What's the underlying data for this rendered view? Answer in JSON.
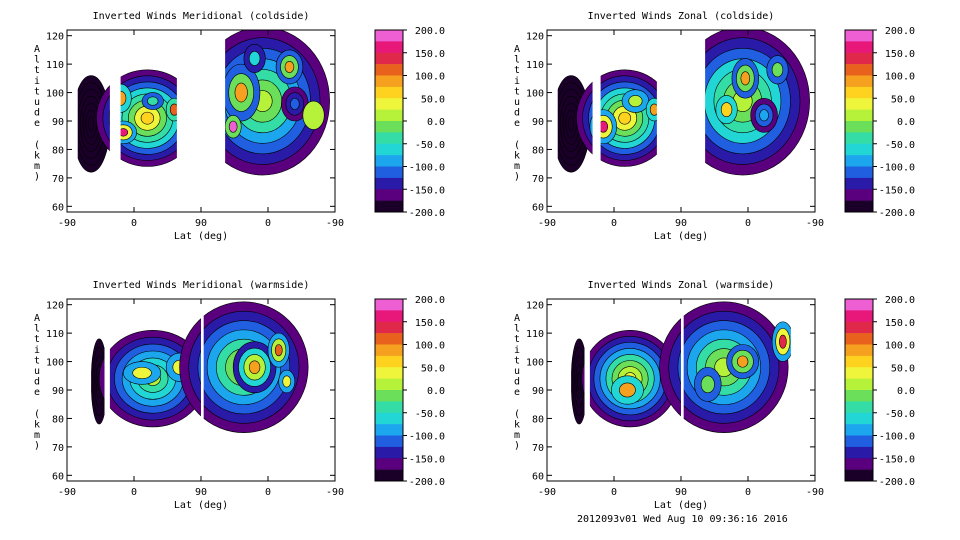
{
  "chart_data": [
    {
      "type": "heatmap",
      "title": "Inverted Winds Meridional (coldside)",
      "xlabel": "Lat (deg)",
      "ylabel": "Altitude (km)",
      "x_ticks": [
        "-90",
        "0",
        "90",
        "0",
        "-90"
      ],
      "y_ticks": [
        "60",
        "70",
        "80",
        "90",
        "100",
        "110",
        "120"
      ],
      "ylim": [
        58,
        122
      ],
      "colorbar_labels": [
        "200.0",
        "150.0",
        "100.0",
        "50.0",
        "0.0",
        "-50.0",
        "-100.0",
        "-150.0",
        "-200.0"
      ],
      "colorbar_range": [
        -200,
        200
      ],
      "blobs": [
        {
          "x": 0.09,
          "y": 89,
          "w": 0.07,
          "h": 17,
          "v": -185,
          "layers": 7
        },
        {
          "x": 0.3,
          "y": 91,
          "w": 0.19,
          "h": 17,
          "v": 60,
          "layers": 8
        },
        {
          "x": 0.21,
          "y": 86,
          "w": 0.05,
          "h": 4,
          "v": 165,
          "layers": 3
        },
        {
          "x": 0.2,
          "y": 98,
          "w": 0.04,
          "h": 5,
          "v": 80,
          "layers": 2
        },
        {
          "x": 0.4,
          "y": 94,
          "w": 0.03,
          "h": 4,
          "v": 120,
          "layers": 2
        },
        {
          "x": 0.32,
          "y": 97,
          "w": 0.04,
          "h": 3,
          "v": -40,
          "layers": 2
        },
        {
          "x": 0.73,
          "y": 97,
          "w": 0.25,
          "h": 26,
          "v": 10,
          "layers": 7
        },
        {
          "x": 0.65,
          "y": 100,
          "w": 0.07,
          "h": 10,
          "v": 80,
          "layers": 3
        },
        {
          "x": 0.7,
          "y": 112,
          "w": 0.04,
          "h": 5,
          "v": -70,
          "layers": 2
        },
        {
          "x": 0.83,
          "y": 109,
          "w": 0.05,
          "h": 6,
          "v": 85,
          "layers": 3
        },
        {
          "x": 0.85,
          "y": 96,
          "w": 0.05,
          "h": 6,
          "v": -120,
          "layers": 3
        },
        {
          "x": 0.62,
          "y": 88,
          "w": 0.03,
          "h": 4,
          "v": 175,
          "layers": 2
        },
        {
          "x": 0.92,
          "y": 92,
          "w": 0.04,
          "h": 5,
          "v": 15,
          "layers": 1
        }
      ]
    },
    {
      "type": "heatmap",
      "title": "Inverted Winds Zonal (coldside)",
      "xlabel": "Lat (deg)",
      "ylabel": "Altitude (km)",
      "x_ticks": [
        "-90",
        "0",
        "90",
        "0",
        "-90"
      ],
      "y_ticks": [
        "60",
        "70",
        "80",
        "90",
        "100",
        "110",
        "120"
      ],
      "ylim": [
        58,
        122
      ],
      "colorbar_labels": [
        "200.0",
        "150.0",
        "100.0",
        "50.0",
        "0.0",
        "-50.0",
        "-100.0",
        "-150.0",
        "-200.0"
      ],
      "colorbar_range": [
        -200,
        200
      ],
      "blobs": [
        {
          "x": 0.09,
          "y": 89,
          "w": 0.07,
          "h": 17,
          "v": -185,
          "layers": 7
        },
        {
          "x": 0.29,
          "y": 91,
          "w": 0.18,
          "h": 17,
          "v": 60,
          "layers": 8
        },
        {
          "x": 0.21,
          "y": 88,
          "w": 0.05,
          "h": 6,
          "v": 165,
          "layers": 3
        },
        {
          "x": 0.33,
          "y": 97,
          "w": 0.05,
          "h": 4,
          "v": 5,
          "layers": 2
        },
        {
          "x": 0.4,
          "y": 94,
          "w": 0.03,
          "h": 4,
          "v": 90,
          "layers": 2
        },
        {
          "x": 0.73,
          "y": 97,
          "w": 0.25,
          "h": 26,
          "v": 20,
          "layers": 7
        },
        {
          "x": 0.74,
          "y": 105,
          "w": 0.05,
          "h": 7,
          "v": 80,
          "layers": 3
        },
        {
          "x": 0.81,
          "y": 92,
          "w": 0.05,
          "h": 6,
          "v": -80,
          "layers": 3
        },
        {
          "x": 0.67,
          "y": 94,
          "w": 0.04,
          "h": 5,
          "v": 60,
          "layers": 2
        },
        {
          "x": 0.86,
          "y": 108,
          "w": 0.04,
          "h": 5,
          "v": -20,
          "layers": 2
        }
      ]
    },
    {
      "type": "heatmap",
      "title": "Inverted Winds Meridional (warmside)",
      "xlabel": "Lat (deg)",
      "ylabel": "Altitude (km)",
      "x_ticks": [
        "-90",
        "0",
        "90",
        "0",
        "-90"
      ],
      "y_ticks": [
        "60",
        "70",
        "80",
        "90",
        "100",
        "110",
        "120"
      ],
      "ylim": [
        58,
        122
      ],
      "colorbar_labels": [
        "200.0",
        "150.0",
        "100.0",
        "50.0",
        "0.0",
        "-50.0",
        "-100.0",
        "-150.0",
        "-200.0"
      ],
      "colorbar_range": [
        -200,
        200
      ],
      "blobs": [
        {
          "x": 0.12,
          "y": 93,
          "w": 0.03,
          "h": 15,
          "v": -195,
          "layers": 5
        },
        {
          "x": 0.32,
          "y": 94,
          "w": 0.2,
          "h": 17,
          "v": 0,
          "layers": 7
        },
        {
          "x": 0.28,
          "y": 96,
          "w": 0.07,
          "h": 4,
          "v": 30,
          "layers": 2
        },
        {
          "x": 0.42,
          "y": 98,
          "w": 0.05,
          "h": 5,
          "v": 25,
          "layers": 2
        },
        {
          "x": 0.66,
          "y": 98,
          "w": 0.24,
          "h": 23,
          "v": 15,
          "layers": 7
        },
        {
          "x": 0.7,
          "y": 98,
          "w": 0.08,
          "h": 9,
          "v": 80,
          "layers": 4
        },
        {
          "x": 0.79,
          "y": 104,
          "w": 0.04,
          "h": 6,
          "v": 110,
          "layers": 3
        },
        {
          "x": 0.82,
          "y": 93,
          "w": 0.03,
          "h": 4,
          "v": 30,
          "layers": 2
        }
      ]
    },
    {
      "type": "heatmap",
      "title": "Inverted Winds Zonal (warmside)",
      "xlabel": "Lat (deg)",
      "ylabel": "Altitude (km)",
      "x_ticks": [
        "-90",
        "0",
        "90",
        "0",
        "-90"
      ],
      "y_ticks": [
        "60",
        "70",
        "80",
        "90",
        "100",
        "110",
        "120"
      ],
      "ylim": [
        58,
        122
      ],
      "colorbar_labels": [
        "200.0",
        "150.0",
        "100.0",
        "50.0",
        "0.0",
        "-50.0",
        "-100.0",
        "-150.0",
        "-200.0"
      ],
      "colorbar_range": [
        -200,
        200
      ],
      "blobs": [
        {
          "x": 0.12,
          "y": 93,
          "w": 0.03,
          "h": 15,
          "v": -195,
          "layers": 5
        },
        {
          "x": 0.31,
          "y": 94,
          "w": 0.18,
          "h": 17,
          "v": 40,
          "layers": 8
        },
        {
          "x": 0.3,
          "y": 90,
          "w": 0.06,
          "h": 5,
          "v": 75,
          "layers": 2
        },
        {
          "x": 0.66,
          "y": 98,
          "w": 0.24,
          "h": 23,
          "v": 10,
          "layers": 7
        },
        {
          "x": 0.73,
          "y": 100,
          "w": 0.06,
          "h": 6,
          "v": 95,
          "layers": 3
        },
        {
          "x": 0.88,
          "y": 107,
          "w": 0.04,
          "h": 7,
          "v": 140,
          "layers": 3
        },
        {
          "x": 0.6,
          "y": 92,
          "w": 0.05,
          "h": 6,
          "v": -20,
          "layers": 2
        }
      ]
    }
  ],
  "footer": {
    "timestamp": "2012093v01 Wed Aug 10 09:36:16 2016"
  }
}
